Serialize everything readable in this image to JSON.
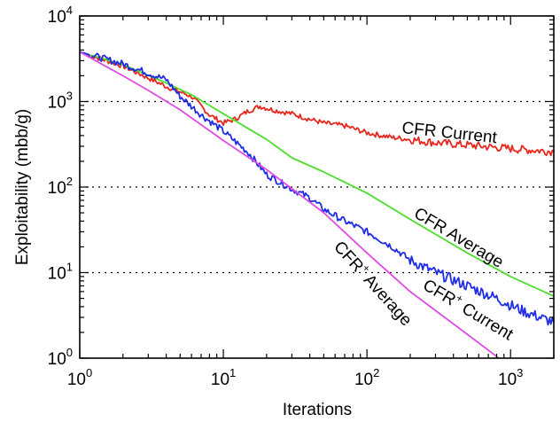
{
  "chart_data": {
    "type": "line",
    "xlabel": "Iterations",
    "ylabel": "Exploitability (mbb/g)",
    "xscale": "log",
    "yscale": "log",
    "xlim": [
      1,
      2000
    ],
    "ylim": [
      1,
      10000
    ],
    "grid": "horizontal dotted at 10, 100, 1000",
    "x_ticks": [
      {
        "base": "10",
        "exp": "0",
        "value": 1
      },
      {
        "base": "10",
        "exp": "1",
        "value": 10
      },
      {
        "base": "10",
        "exp": "2",
        "value": 100
      },
      {
        "base": "10",
        "exp": "3",
        "value": 1000
      }
    ],
    "y_ticks": [
      {
        "base": "10",
        "exp": "0",
        "value": 1
      },
      {
        "base": "10",
        "exp": "1",
        "value": 10
      },
      {
        "base": "10",
        "exp": "2",
        "value": 100
      },
      {
        "base": "10",
        "exp": "3",
        "value": 1000
      },
      {
        "base": "10",
        "exp": "4",
        "value": 10000
      }
    ],
    "series": [
      {
        "name": "CFR Current",
        "label_main": "CFR Current",
        "label_sup": "",
        "label_after": "",
        "color": "#e8281e",
        "noise": 0.03,
        "points": [
          [
            1,
            3800
          ],
          [
            2,
            2600
          ],
          [
            4,
            1500
          ],
          [
            6,
            1150
          ],
          [
            8,
            700
          ],
          [
            10,
            560
          ],
          [
            12,
            620
          ],
          [
            15,
            780
          ],
          [
            18,
            880
          ],
          [
            22,
            800
          ],
          [
            30,
            720
          ],
          [
            40,
            620
          ],
          [
            50,
            560
          ],
          [
            70,
            520
          ],
          [
            100,
            430
          ],
          [
            150,
            380
          ],
          [
            200,
            360
          ],
          [
            300,
            330
          ],
          [
            500,
            310
          ],
          [
            800,
            290
          ],
          [
            1200,
            275
          ],
          [
            2000,
            260
          ]
        ]
      },
      {
        "name": "CFR Average",
        "label_main": "CFR Average",
        "label_sup": "",
        "label_after": "",
        "color": "#4cde2c",
        "noise": 0,
        "points": [
          [
            1,
            3800
          ],
          [
            2,
            2700
          ],
          [
            4,
            1650
          ],
          [
            6,
            1200
          ],
          [
            8,
            900
          ],
          [
            10,
            720
          ],
          [
            15,
            480
          ],
          [
            20,
            360
          ],
          [
            30,
            220
          ],
          [
            50,
            150
          ],
          [
            100,
            85
          ],
          [
            200,
            42
          ],
          [
            500,
            17
          ],
          [
            1000,
            9
          ],
          [
            2000,
            5.3
          ]
        ]
      },
      {
        "name": "CFR+ Current",
        "label_main": "CFR",
        "label_sup": "+",
        "label_after": " Current",
        "color": "#1f2de6",
        "noise": 0.04,
        "points": [
          [
            1,
            3800
          ],
          [
            2,
            2750
          ],
          [
            4,
            1800
          ],
          [
            5,
            1150
          ],
          [
            7,
            700
          ],
          [
            10,
            450
          ],
          [
            15,
            250
          ],
          [
            20,
            140
          ],
          [
            30,
            95
          ],
          [
            40,
            75
          ],
          [
            50,
            55
          ],
          [
            70,
            40
          ],
          [
            100,
            30
          ],
          [
            150,
            20
          ],
          [
            200,
            14
          ],
          [
            300,
            10
          ],
          [
            500,
            7
          ],
          [
            800,
            5
          ],
          [
            1200,
            3.6
          ],
          [
            2000,
            2.6
          ]
        ]
      },
      {
        "name": "CFR+ Average",
        "label_main": "CFR",
        "label_sup": "+",
        "label_after": " Average",
        "color": "#e04be4",
        "noise": 0,
        "points": [
          [
            1,
            3800
          ],
          [
            2,
            2000
          ],
          [
            3,
            1350
          ],
          [
            5,
            800
          ],
          [
            10,
            350
          ],
          [
            20,
            160
          ],
          [
            50,
            50
          ],
          [
            100,
            17
          ],
          [
            200,
            6
          ],
          [
            500,
            1.9
          ],
          [
            900,
            0.9
          ]
        ]
      }
    ]
  }
}
